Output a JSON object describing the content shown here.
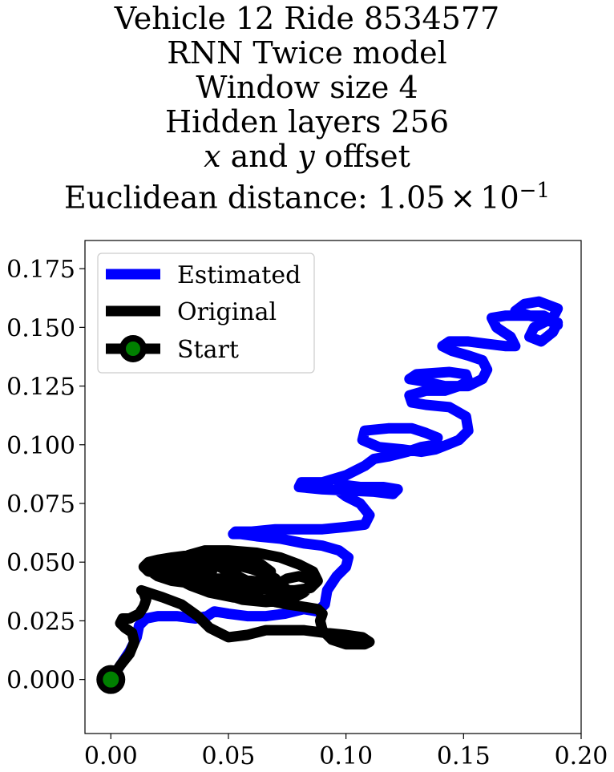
{
  "chart_data": {
    "type": "line",
    "title_lines": [
      "Vehicle 12 Ride 8534577",
      "RNN Twice model",
      "Window size 4",
      "Hidden layers 256"
    ],
    "title_offset_line": {
      "x_var": "x",
      "and": "and",
      "y_var": "y",
      "rest": "offset"
    },
    "title_distance_line": {
      "prefix": "Euclidean distance: ",
      "mantissa": "1.05",
      "times": "×",
      "base": "10",
      "exponent": "−1"
    },
    "xlabel": "",
    "ylabel": "",
    "xlim": [
      -0.011,
      0.2
    ],
    "ylim": [
      -0.023,
      0.187
    ],
    "x_ticks": [
      0.0,
      0.05,
      0.1,
      0.15,
      0.2
    ],
    "x_tick_labels": [
      "0.00",
      "0.05",
      "0.10",
      "0.15",
      "0.20"
    ],
    "y_ticks": [
      0.0,
      0.025,
      0.05,
      0.075,
      0.1,
      0.125,
      0.15,
      0.175
    ],
    "y_tick_labels": [
      "0.000",
      "0.025",
      "0.050",
      "0.075",
      "0.100",
      "0.125",
      "0.150",
      "0.175"
    ],
    "grid": false,
    "legend_position": "upper-left",
    "series": [
      {
        "name": "Estimated",
        "color": "#0000ff",
        "x": [
          0.0,
          0.004,
          0.008,
          0.011,
          0.012,
          0.015,
          0.02,
          0.028,
          0.036,
          0.041,
          0.044,
          0.05,
          0.058,
          0.066,
          0.074,
          0.082,
          0.088,
          0.091,
          0.092,
          0.096,
          0.1,
          0.101,
          0.097,
          0.09,
          0.082,
          0.072,
          0.062,
          0.055,
          0.052,
          0.053,
          0.06,
          0.07,
          0.08,
          0.09,
          0.1,
          0.108,
          0.11,
          0.106,
          0.1,
          0.096,
          0.098,
          0.106,
          0.116,
          0.122,
          0.12,
          0.112,
          0.09,
          0.08,
          0.081,
          0.09,
          0.1,
          0.108,
          0.112,
          0.118,
          0.126,
          0.132,
          0.138,
          0.139,
          0.134,
          0.128,
          0.118,
          0.108,
          0.107,
          0.114,
          0.124,
          0.132,
          0.138,
          0.143,
          0.148,
          0.152,
          0.151,
          0.144,
          0.134,
          0.128,
          0.127,
          0.134,
          0.142,
          0.148,
          0.152,
          0.151,
          0.144,
          0.13,
          0.127,
          0.133,
          0.142,
          0.152,
          0.158,
          0.16,
          0.158,
          0.152,
          0.145,
          0.141,
          0.144,
          0.152,
          0.16,
          0.168,
          0.172,
          0.17,
          0.164,
          0.162,
          0.168,
          0.176,
          0.184,
          0.19,
          0.188,
          0.183,
          0.178,
          0.18,
          0.188,
          0.19,
          0.182,
          0.176,
          0.172,
          0.178,
          0.186,
          0.19
        ],
        "y": [
          0.0,
          0.006,
          0.012,
          0.018,
          0.023,
          0.026,
          0.027,
          0.027,
          0.026,
          0.027,
          0.029,
          0.028,
          0.027,
          0.027,
          0.028,
          0.03,
          0.029,
          0.032,
          0.038,
          0.044,
          0.048,
          0.052,
          0.055,
          0.057,
          0.058,
          0.06,
          0.061,
          0.062,
          0.062,
          0.063,
          0.063,
          0.064,
          0.064,
          0.064,
          0.065,
          0.066,
          0.07,
          0.075,
          0.078,
          0.081,
          0.083,
          0.082,
          0.082,
          0.081,
          0.079,
          0.08,
          0.081,
          0.082,
          0.084,
          0.084,
          0.087,
          0.091,
          0.094,
          0.095,
          0.097,
          0.099,
          0.1,
          0.103,
          0.105,
          0.107,
          0.107,
          0.106,
          0.102,
          0.099,
          0.098,
          0.097,
          0.098,
          0.1,
          0.102,
          0.106,
          0.112,
          0.116,
          0.117,
          0.118,
          0.121,
          0.123,
          0.123,
          0.125,
          0.127,
          0.13,
          0.131,
          0.13,
          0.128,
          0.127,
          0.125,
          0.125,
          0.128,
          0.132,
          0.136,
          0.138,
          0.14,
          0.142,
          0.144,
          0.144,
          0.143,
          0.142,
          0.142,
          0.146,
          0.15,
          0.154,
          0.155,
          0.155,
          0.155,
          0.152,
          0.148,
          0.144,
          0.146,
          0.15,
          0.154,
          0.158,
          0.161,
          0.16,
          0.157,
          0.155,
          0.153,
          0.151
        ]
      },
      {
        "name": "Original",
        "color": "#000000",
        "x": [
          0.0,
          0.004,
          0.008,
          0.01,
          0.009,
          0.006,
          0.004,
          0.005,
          0.008,
          0.012,
          0.014,
          0.015,
          0.014,
          0.013,
          0.016,
          0.022,
          0.03,
          0.037,
          0.042,
          0.046,
          0.05,
          0.058,
          0.066,
          0.074,
          0.082,
          0.09,
          0.1,
          0.107,
          0.11,
          0.108,
          0.1,
          0.094,
          0.09,
          0.089,
          0.09,
          0.088,
          0.082,
          0.075,
          0.07,
          0.068,
          0.07,
          0.075,
          0.08,
          0.084,
          0.085,
          0.082,
          0.076,
          0.066,
          0.056,
          0.046,
          0.038,
          0.032,
          0.03,
          0.033,
          0.04,
          0.05,
          0.062,
          0.072,
          0.08,
          0.086,
          0.088,
          0.085,
          0.078,
          0.07,
          0.062,
          0.056,
          0.05,
          0.044,
          0.038,
          0.032,
          0.026,
          0.021,
          0.018,
          0.017,
          0.02,
          0.026,
          0.034,
          0.042,
          0.05,
          0.058,
          0.064,
          0.068,
          0.068,
          0.064,
          0.058,
          0.05,
          0.042,
          0.034,
          0.026,
          0.02,
          0.016,
          0.014,
          0.016,
          0.022,
          0.03,
          0.04,
          0.05,
          0.06,
          0.068,
          0.074,
          0.077,
          0.076,
          0.07,
          0.062,
          0.052,
          0.042,
          0.034,
          0.028,
          0.024,
          0.023,
          0.026,
          0.032,
          0.04,
          0.048,
          0.056,
          0.062,
          0.066,
          0.067,
          0.064,
          0.058,
          0.05,
          0.042,
          0.034,
          0.027,
          0.022,
          0.02,
          0.022,
          0.028,
          0.036,
          0.044,
          0.052,
          0.06,
          0.066,
          0.07,
          0.071,
          0.068,
          0.062,
          0.054,
          0.046,
          0.038,
          0.031,
          0.025,
          0.021,
          0.02,
          0.022,
          0.027,
          0.034,
          0.04,
          0.043
        ],
        "y": [
          0.0,
          0.006,
          0.011,
          0.016,
          0.02,
          0.022,
          0.024,
          0.026,
          0.026,
          0.028,
          0.031,
          0.034,
          0.037,
          0.038,
          0.037,
          0.035,
          0.032,
          0.027,
          0.022,
          0.02,
          0.018,
          0.019,
          0.021,
          0.021,
          0.021,
          0.02,
          0.019,
          0.018,
          0.016,
          0.015,
          0.015,
          0.017,
          0.021,
          0.025,
          0.028,
          0.03,
          0.031,
          0.032,
          0.033,
          0.036,
          0.04,
          0.043,
          0.044,
          0.043,
          0.04,
          0.037,
          0.034,
          0.033,
          0.034,
          0.037,
          0.041,
          0.045,
          0.049,
          0.053,
          0.055,
          0.055,
          0.054,
          0.052,
          0.049,
          0.046,
          0.042,
          0.039,
          0.038,
          0.038,
          0.04,
          0.043,
          0.046,
          0.049,
          0.051,
          0.052,
          0.052,
          0.051,
          0.049,
          0.046,
          0.044,
          0.042,
          0.041,
          0.04,
          0.04,
          0.04,
          0.041,
          0.043,
          0.046,
          0.049,
          0.051,
          0.052,
          0.053,
          0.053,
          0.052,
          0.051,
          0.05,
          0.048,
          0.046,
          0.045,
          0.044,
          0.043,
          0.043,
          0.042,
          0.041,
          0.039,
          0.037,
          0.035,
          0.034,
          0.034,
          0.035,
          0.037,
          0.04,
          0.043,
          0.046,
          0.049,
          0.051,
          0.052,
          0.052,
          0.051,
          0.049,
          0.047,
          0.045,
          0.043,
          0.041,
          0.04,
          0.04,
          0.041,
          0.043,
          0.045,
          0.047,
          0.049,
          0.05,
          0.051,
          0.051,
          0.05,
          0.049,
          0.047,
          0.045,
          0.043,
          0.041,
          0.039,
          0.038,
          0.038,
          0.039,
          0.041,
          0.043,
          0.045,
          0.047,
          0.048,
          0.049,
          0.049,
          0.048,
          0.047,
          0.046
        ]
      },
      {
        "name": "Start",
        "color": "#000000",
        "marker_color": "#008000",
        "x": [
          0.0
        ],
        "y": [
          0.0
        ]
      }
    ]
  }
}
